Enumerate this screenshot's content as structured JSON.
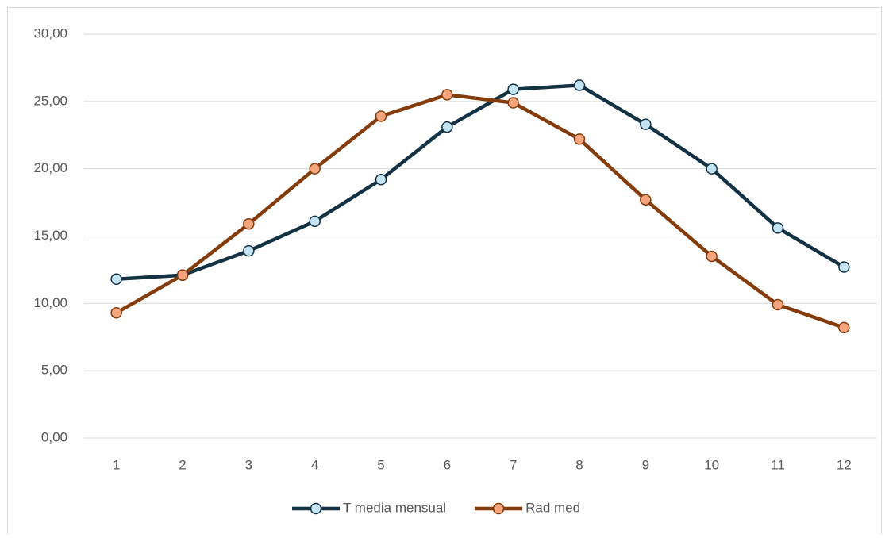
{
  "chart_data": {
    "type": "line",
    "categories": [
      "1",
      "2",
      "3",
      "4",
      "5",
      "6",
      "7",
      "8",
      "9",
      "10",
      "11",
      "12"
    ],
    "series": [
      {
        "name": "T media mensual",
        "color": "#133345",
        "marker_color": "#c5e4f3",
        "values": [
          11.8,
          12.1,
          13.9,
          16.1,
          19.2,
          23.1,
          25.9,
          26.2,
          23.3,
          20.0,
          15.6,
          12.7
        ]
      },
      {
        "name": "Rad med",
        "color": "#843c0c",
        "marker_color": "#f4a57e",
        "values": [
          9.3,
          12.1,
          15.9,
          20.0,
          23.9,
          25.5,
          24.9,
          22.2,
          17.7,
          13.5,
          9.9,
          8.2
        ]
      }
    ],
    "ylim": [
      0,
      30
    ],
    "yticks": [
      {
        "value": 0,
        "label": "0,00"
      },
      {
        "value": 5,
        "label": "5,00"
      },
      {
        "value": 10,
        "label": "10,00"
      },
      {
        "value": 15,
        "label": "15,00"
      },
      {
        "value": 20,
        "label": "20,00"
      },
      {
        "value": 25,
        "label": "25,00"
      },
      {
        "value": 30,
        "label": "30,00"
      }
    ],
    "grid": true,
    "legend": "bottom"
  }
}
